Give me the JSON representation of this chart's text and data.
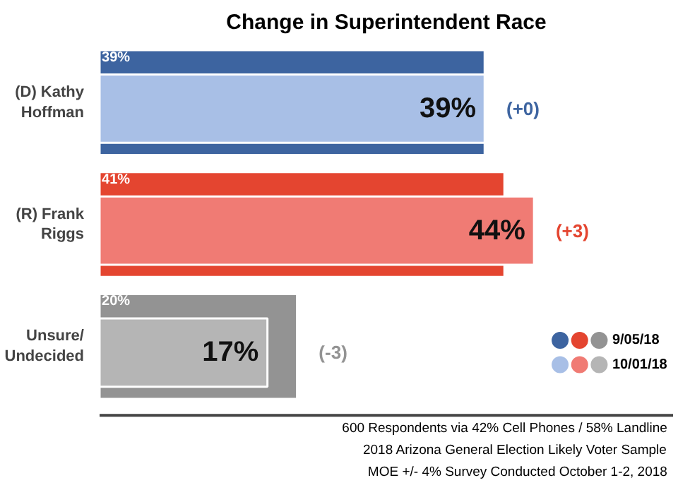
{
  "chart_data": {
    "type": "bar",
    "orientation": "horizontal",
    "title": "Change in Superintendent Race",
    "categories": [
      "(D) Kathy\nHoffman",
      "(R) Frank\nRiggs",
      "Unsure/\nUndecided"
    ],
    "series": [
      {
        "name": "9/05/18",
        "colors": [
          "#3d64a0",
          "#e44530",
          "#939393"
        ],
        "values": [
          39,
          41,
          20
        ],
        "value_labels": [
          "39%",
          "41%",
          "20%"
        ]
      },
      {
        "name": "10/01/18",
        "colors": [
          "#a8bfe6",
          "#f07b74",
          "#b5b5b5"
        ],
        "values": [
          39,
          44,
          17
        ],
        "value_labels": [
          "39%",
          "44%",
          "17%"
        ]
      }
    ],
    "annotations": [
      "(+0)",
      "(+3)",
      "(-3)",
      "600 Respondents via 42% Cell Phones / 58% Landline",
      "2018 Arizona General Election Likely Voter Sample",
      "MOE +/- 4% Survey Conducted October 1-2, 2018"
    ],
    "legend": "bottom right"
  }
}
